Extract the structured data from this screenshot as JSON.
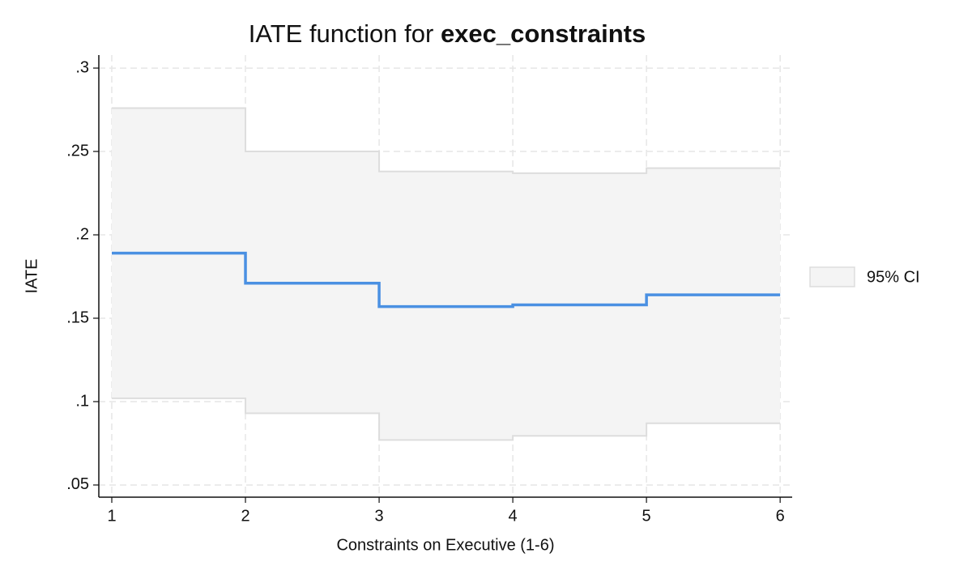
{
  "chart_data": {
    "type": "step",
    "title": "IATE function for ",
    "title_bold": "exec_constraints",
    "xlabel": "Constraints on Executive (1-6)",
    "ylabel": "IATE",
    "x": [
      1,
      2,
      2,
      3,
      3,
      4,
      4,
      5,
      5,
      6
    ],
    "series": [
      {
        "color": "#4a90e2",
        "values": [
          0.189,
          0.189,
          0.171,
          0.171,
          0.157,
          0.157,
          0.158,
          0.158,
          0.164,
          0.164
        ]
      }
    ],
    "ci": {
      "name": "95% CI",
      "color": "#f4f4f4",
      "edge": "#dddddd",
      "upper": [
        0.276,
        0.276,
        0.25,
        0.25,
        0.238,
        0.238,
        0.237,
        0.237,
        0.24,
        0.24
      ],
      "lower": [
        0.102,
        0.102,
        0.093,
        0.093,
        0.077,
        0.077,
        0.0795,
        0.0795,
        0.087,
        0.087
      ]
    },
    "xlim": [
      0.903,
      6.09
    ],
    "ylim": [
      0.0427,
      0.3078
    ],
    "xticks": [
      1,
      2,
      3,
      4,
      5,
      6
    ],
    "yticks": [
      {
        "value": 0.05,
        "label": ".05"
      },
      {
        "value": 0.1,
        "label": ".1"
      },
      {
        "value": 0.15,
        "label": ".15"
      },
      {
        "value": 0.2,
        "label": ".2"
      },
      {
        "value": 0.25,
        "label": ".25"
      },
      {
        "value": 0.3,
        "label": ".3"
      }
    ],
    "grid": true
  }
}
